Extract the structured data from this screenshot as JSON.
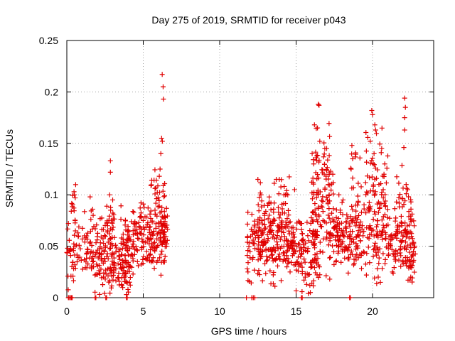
{
  "chart_data": {
    "type": "scatter",
    "title": "Day 275 of 2019, SRMTID for receiver p043",
    "xlabel": "GPS time / hours",
    "ylabel": "SRMTID / TECUs",
    "xlim": [
      0,
      24
    ],
    "ylim": [
      0,
      0.25
    ],
    "xticks": [
      0,
      5,
      10,
      15,
      20
    ],
    "yticks": [
      0,
      0.05,
      0.1,
      0.15,
      0.2,
      0.25
    ],
    "ytick_labels": [
      "0",
      "0.05",
      "0.1",
      "0.15",
      "0.2",
      "0.25"
    ],
    "grid": true,
    "marker": "+",
    "color": "#e00000",
    "clusters": [
      {
        "x_range": [
          0.0,
          1.0
        ],
        "center": 0.045,
        "spread": 0.015,
        "count": 40
      },
      {
        "x_range": [
          0.3,
          0.6
        ],
        "center": 0.085,
        "spread": 0.012,
        "count": 10
      },
      {
        "x_range": [
          1.0,
          2.5
        ],
        "center": 0.048,
        "spread": 0.015,
        "count": 70
      },
      {
        "x_range": [
          1.5,
          1.9
        ],
        "center": 0.08,
        "spread": 0.01,
        "count": 8
      },
      {
        "x_range": [
          2.0,
          2.8
        ],
        "center": 0.03,
        "spread": 0.012,
        "count": 30
      },
      {
        "x_range": [
          2.5,
          3.2
        ],
        "center": 0.06,
        "spread": 0.02,
        "count": 35
      },
      {
        "x_range": [
          2.8,
          4.2
        ],
        "center": 0.035,
        "spread": 0.015,
        "count": 80
      },
      {
        "x_range": [
          3.5,
          4.5
        ],
        "center": 0.05,
        "spread": 0.015,
        "count": 50
      },
      {
        "x_range": [
          4.3,
          6.6
        ],
        "center": 0.058,
        "spread": 0.014,
        "count": 170
      },
      {
        "x_range": [
          5.5,
          6.5
        ],
        "center": 0.09,
        "spread": 0.02,
        "count": 40
      },
      {
        "x_range": [
          11.8,
          13.5
        ],
        "center": 0.055,
        "spread": 0.018,
        "count": 120
      },
      {
        "x_range": [
          12.5,
          13.6
        ],
        "center": 0.08,
        "spread": 0.015,
        "count": 30
      },
      {
        "x_range": [
          13.5,
          15.5
        ],
        "center": 0.052,
        "spread": 0.018,
        "count": 150
      },
      {
        "x_range": [
          13.8,
          14.6
        ],
        "center": 0.09,
        "spread": 0.015,
        "count": 20
      },
      {
        "x_range": [
          15.5,
          16.5
        ],
        "center": 0.045,
        "spread": 0.02,
        "count": 60
      },
      {
        "x_range": [
          16.0,
          17.5
        ],
        "center": 0.07,
        "spread": 0.025,
        "count": 100
      },
      {
        "x_range": [
          16.2,
          17.2
        ],
        "center": 0.12,
        "spread": 0.02,
        "count": 40
      },
      {
        "x_range": [
          17.5,
          19.0
        ],
        "center": 0.06,
        "spread": 0.016,
        "count": 110
      },
      {
        "x_range": [
          18.5,
          19.2
        ],
        "center": 0.1,
        "spread": 0.02,
        "count": 20
      },
      {
        "x_range": [
          19.0,
          21.0
        ],
        "center": 0.065,
        "spread": 0.02,
        "count": 120
      },
      {
        "x_range": [
          19.5,
          21.0
        ],
        "center": 0.12,
        "spread": 0.02,
        "count": 40
      },
      {
        "x_range": [
          21.0,
          22.8
        ],
        "center": 0.055,
        "spread": 0.016,
        "count": 110
      },
      {
        "x_range": [
          21.2,
          22.6
        ],
        "center": 0.09,
        "spread": 0.015,
        "count": 30
      },
      {
        "x_range": [
          22.3,
          22.8
        ],
        "center": 0.03,
        "spread": 0.01,
        "count": 15
      }
    ],
    "points": [
      [
        6.24,
        0.217
      ],
      [
        6.3,
        0.205
      ],
      [
        6.32,
        0.193
      ],
      [
        6.2,
        0.155
      ],
      [
        6.25,
        0.152
      ],
      [
        6.15,
        0.14
      ],
      [
        6.1,
        0.125
      ],
      [
        6.05,
        0.118
      ],
      [
        2.85,
        0.133
      ],
      [
        2.85,
        0.122
      ],
      [
        2.8,
        0.1
      ],
      [
        3.0,
        0.095
      ],
      [
        0.47,
        0.103
      ],
      [
        0.5,
        0.1
      ],
      [
        0.55,
        0.097
      ],
      [
        3.9,
        0.003
      ],
      [
        4.0,
        0.008
      ],
      [
        3.6,
        0.012
      ],
      [
        2.4,
        0.02
      ],
      [
        4.1,
        0.015
      ],
      [
        16.45,
        0.188
      ],
      [
        16.5,
        0.187
      ],
      [
        16.2,
        0.168
      ],
      [
        16.4,
        0.165
      ],
      [
        16.55,
        0.152
      ],
      [
        16.05,
        0.14
      ],
      [
        16.3,
        0.136
      ],
      [
        16.15,
        0.13
      ],
      [
        17.0,
        0.145
      ],
      [
        17.4,
        0.12
      ],
      [
        17.8,
        0.1
      ],
      [
        17.1,
        0.11
      ],
      [
        19.95,
        0.182
      ],
      [
        20.0,
        0.178
      ],
      [
        20.15,
        0.168
      ],
      [
        20.2,
        0.163
      ],
      [
        19.85,
        0.152
      ],
      [
        20.1,
        0.14
      ],
      [
        20.05,
        0.13
      ],
      [
        18.65,
        0.148
      ],
      [
        18.7,
        0.135
      ],
      [
        18.6,
        0.125
      ],
      [
        20.6,
        0.145
      ],
      [
        20.8,
        0.13
      ],
      [
        20.75,
        0.12
      ],
      [
        20.7,
        0.105
      ],
      [
        22.1,
        0.194
      ],
      [
        22.15,
        0.185
      ],
      [
        22.1,
        0.175
      ],
      [
        22.1,
        0.163
      ],
      [
        22.05,
        0.146
      ],
      [
        22.2,
        0.11
      ],
      [
        22.3,
        0.105
      ],
      [
        13.7,
        0.115
      ],
      [
        13.9,
        0.115
      ],
      [
        12.5,
        0.115
      ],
      [
        14.9,
        0.105
      ],
      [
        12.7,
        0.1
      ],
      [
        14.3,
        0.1
      ],
      [
        15.8,
        0.004
      ],
      [
        15.9,
        0.012
      ],
      [
        15.6,
        0.02
      ],
      [
        16.0,
        0.03
      ],
      [
        11.8,
        0.028
      ],
      [
        11.85,
        0.025
      ],
      [
        17.2,
        0.018
      ],
      [
        19.6,
        0.022
      ],
      [
        21.3,
        0.025
      ],
      [
        22.5,
        0.02
      ],
      [
        0.0,
        0.044
      ],
      [
        0.05,
        0.048
      ],
      [
        0.1,
        0.0
      ],
      [
        0.15,
        0.0
      ],
      [
        0.25,
        0.0
      ],
      [
        0.3,
        0.0
      ],
      [
        0.35,
        0.0
      ],
      [
        1.85,
        0.0
      ],
      [
        1.9,
        0.0
      ],
      [
        2.55,
        0.0
      ],
      [
        2.6,
        0.0
      ],
      [
        3.9,
        0.0
      ],
      [
        3.95,
        0.0
      ],
      [
        11.75,
        0.0
      ],
      [
        12.1,
        0.0
      ],
      [
        12.2,
        0.0
      ],
      [
        12.3,
        0.0
      ],
      [
        15.35,
        0.0
      ],
      [
        15.4,
        0.0
      ],
      [
        18.5,
        0.0
      ],
      [
        18.55,
        0.0
      ]
    ]
  }
}
